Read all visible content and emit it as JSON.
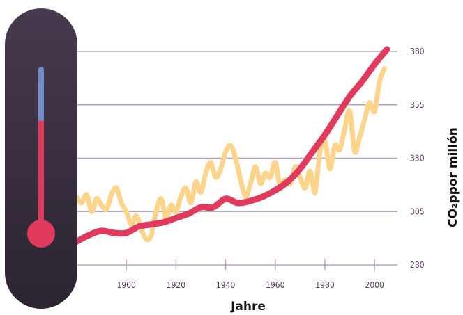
{
  "chart_data": {
    "type": "line",
    "title": "",
    "xlabel": "Jahre",
    "ylabel": "CO₂ppor millón",
    "xlim": [
      1880,
      2005
    ],
    "ylim": [
      280,
      380
    ],
    "x_ticks": [
      1900,
      1920,
      1940,
      1960,
      1980,
      2000
    ],
    "x_tick_labels": [
      "1900",
      "1920",
      "1940",
      "1960",
      "1980",
      "2000"
    ],
    "y_ticks": [
      280,
      305,
      330,
      355,
      380
    ],
    "y_tick_labels": [
      "280",
      "305",
      "330",
      "355",
      "380"
    ],
    "grid": "horizontal",
    "series": [
      {
        "color": "#e23a5c",
        "style": "smooth thick line",
        "x": [
          1880,
          1885,
          1890,
          1895,
          1900,
          1905,
          1910,
          1915,
          1920,
          1925,
          1930,
          1935,
          1940,
          1945,
          1950,
          1955,
          1960,
          1965,
          1970,
          1975,
          1980,
          1985,
          1990,
          1995,
          2000,
          2005
        ],
        "values": [
          291,
          294,
          296,
          295,
          295,
          298,
          299,
          300,
          302,
          304,
          307,
          307,
          311,
          309,
          310,
          312,
          315,
          319,
          325,
          333,
          341,
          350,
          359,
          366,
          374,
          381
        ]
      },
      {
        "color": "#fdd48a",
        "style": "wavy line",
        "x": [
          1880,
          1882,
          1884,
          1886,
          1888,
          1890,
          1892,
          1894,
          1896,
          1898,
          1900,
          1902,
          1904,
          1906,
          1908,
          1910,
          1912,
          1914,
          1916,
          1918,
          1920,
          1922,
          1924,
          1926,
          1928,
          1930,
          1932,
          1934,
          1936,
          1938,
          1940,
          1942,
          1944,
          1946,
          1948,
          1950,
          1952,
          1954,
          1956,
          1958,
          1960,
          1962,
          1964,
          1966,
          1968,
          1970,
          1972,
          1974,
          1976,
          1978,
          1980,
          1982,
          1984,
          1986,
          1988,
          1990,
          1992,
          1994,
          1996,
          1998,
          2000,
          2002,
          2004
        ],
        "values": [
          312,
          309,
          313,
          305,
          311,
          308,
          306,
          313,
          316,
          309,
          305,
          299,
          303,
          297,
          292,
          294,
          305,
          311,
          302,
          308,
          305,
          312,
          316,
          309,
          319,
          314,
          323,
          328,
          321,
          325,
          333,
          336,
          330,
          320,
          312,
          318,
          326,
          318,
          323,
          321,
          328,
          316,
          320,
          318,
          326,
          321,
          316,
          324,
          314,
          333,
          338,
          325,
          336,
          334,
          344,
          352,
          333,
          340,
          348,
          356,
          352,
          366,
          372
        ]
      }
    ]
  },
  "thermometer": {
    "body_color": "#3a2f3c",
    "tube_upper_color": "#6f8fc8",
    "tube_lower_color": "#e23a5c",
    "bulb_color": "#e23a5c",
    "fill_level": 0.68
  }
}
